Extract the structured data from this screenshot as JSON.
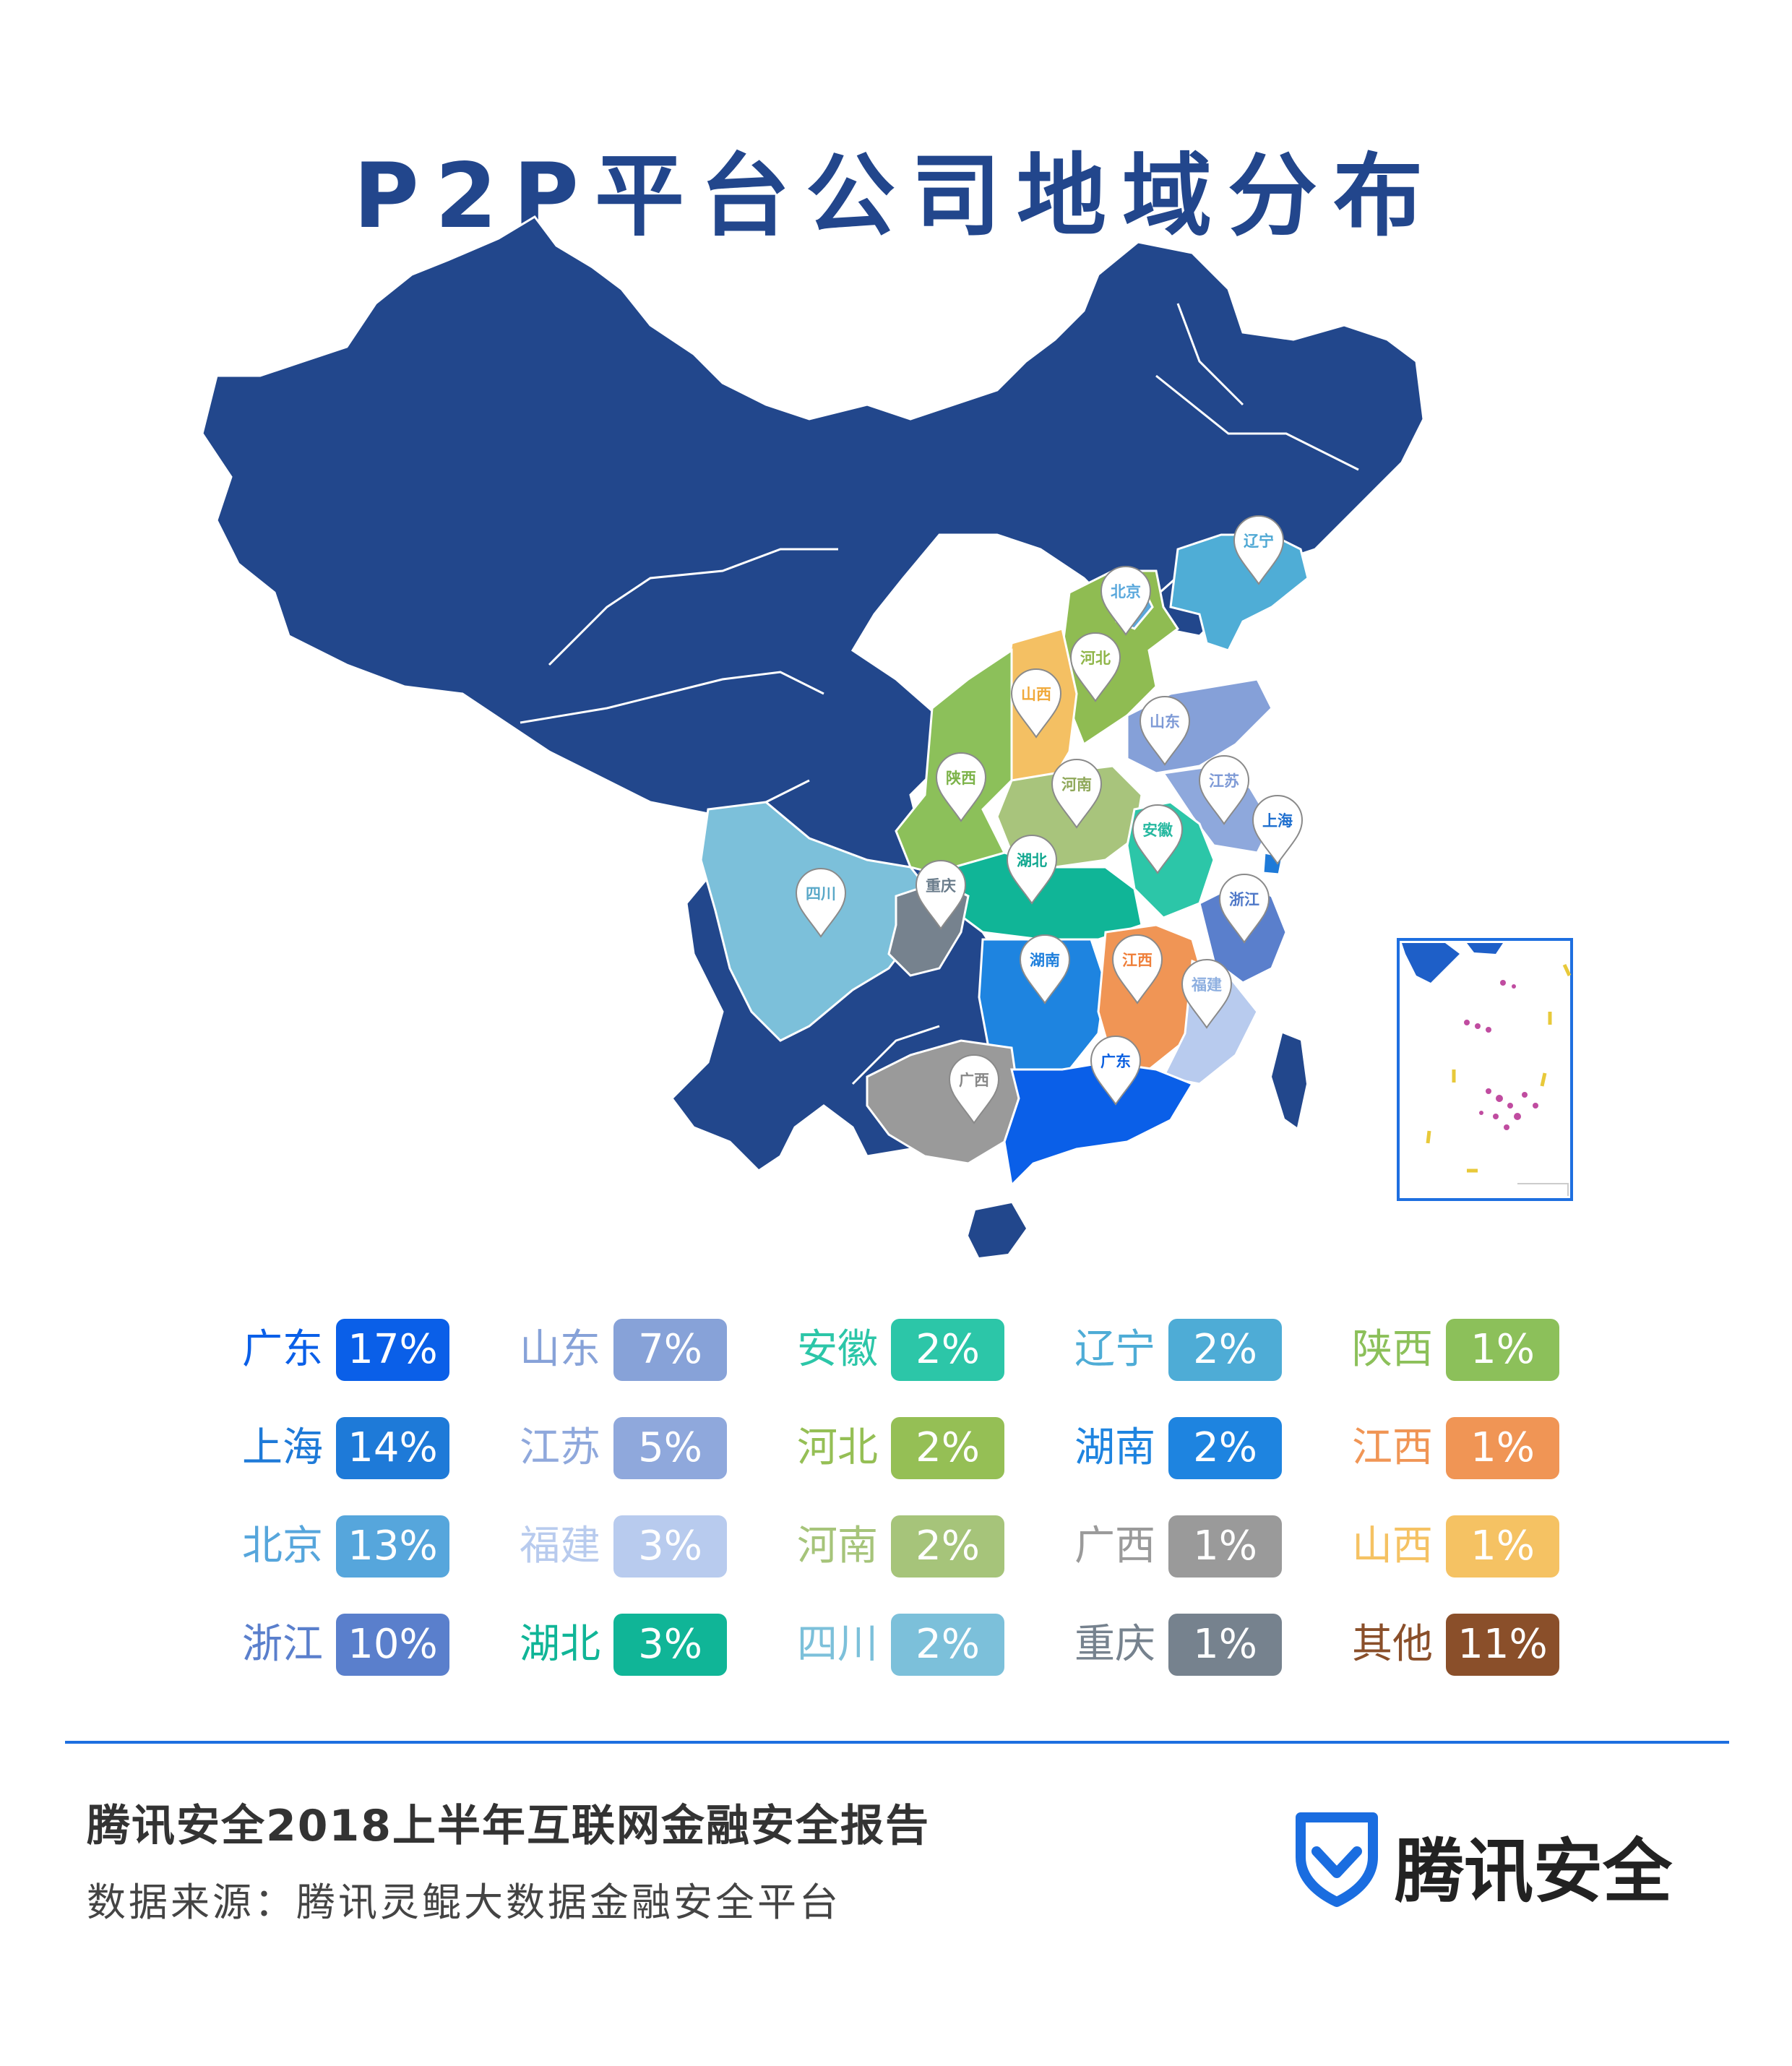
{
  "title": "P2P平台公司地域分布",
  "map_pins": [
    {
      "name": "辽宁",
      "color": "#4fa8d4"
    },
    {
      "name": "北京",
      "color": "#5aa8dc"
    },
    {
      "name": "河北",
      "color": "#8fb548"
    },
    {
      "name": "山西",
      "color": "#f0a93a"
    },
    {
      "name": "山东",
      "color": "#7e9ad6"
    },
    {
      "name": "陕西",
      "color": "#7db34a"
    },
    {
      "name": "河南",
      "color": "#8fa85a"
    },
    {
      "name": "江苏",
      "color": "#7e9ad6"
    },
    {
      "name": "上海",
      "color": "#1e6fcf"
    },
    {
      "name": "安徽",
      "color": "#26b8a0"
    },
    {
      "name": "湖北",
      "color": "#12a890"
    },
    {
      "name": "重庆",
      "color": "#6b7d8c"
    },
    {
      "name": "四川",
      "color": "#5aa8c8"
    },
    {
      "name": "浙江",
      "color": "#4f78c8"
    },
    {
      "name": "湖南",
      "color": "#1e7fdc"
    },
    {
      "name": "江西",
      "color": "#ef7f3a"
    },
    {
      "name": "福建",
      "color": "#8fb0e0"
    },
    {
      "name": "广东",
      "color": "#0a5fe0"
    },
    {
      "name": "广西",
      "color": "#888888"
    }
  ],
  "legend": [
    {
      "name": "广东",
      "pct": "17%",
      "color": "#0a5fe8"
    },
    {
      "name": "上海",
      "pct": "14%",
      "color": "#1e7ad8"
    },
    {
      "name": "北京",
      "pct": "13%",
      "color": "#56a6dc"
    },
    {
      "name": "浙江",
      "pct": "10%",
      "color": "#5a7fcc"
    },
    {
      "name": "山东",
      "pct": "7%",
      "color": "#87a2d8"
    },
    {
      "name": "江苏",
      "pct": "5%",
      "color": "#8fa8dc"
    },
    {
      "name": "福建",
      "pct": "3%",
      "color": "#b8cbee"
    },
    {
      "name": "湖北",
      "pct": "3%",
      "color": "#10b597"
    },
    {
      "name": "安徽",
      "pct": "2%",
      "color": "#2cc6a8"
    },
    {
      "name": "河北",
      "pct": "2%",
      "color": "#95bf55"
    },
    {
      "name": "河南",
      "pct": "2%",
      "color": "#a6c47a"
    },
    {
      "name": "四川",
      "pct": "2%",
      "color": "#7cc0da"
    },
    {
      "name": "辽宁",
      "pct": "2%",
      "color": "#4eacd6"
    },
    {
      "name": "湖南",
      "pct": "2%",
      "color": "#1e84e0"
    },
    {
      "name": "广西",
      "pct": "1%",
      "color": "#9a9a9a"
    },
    {
      "name": "重庆",
      "pct": "1%",
      "color": "#76828e"
    },
    {
      "name": "陕西",
      "pct": "1%",
      "color": "#8cc05a"
    },
    {
      "name": "江西",
      "pct": "1%",
      "color": "#f09555"
    },
    {
      "name": "山西",
      "pct": "1%",
      "color": "#f5c263"
    },
    {
      "name": "其他",
      "pct": "11%",
      "color": "#8a4f2a"
    }
  ],
  "footer": {
    "report_title": "腾讯安全2018上半年互联网金融安全报告",
    "source": "数据来源：腾讯灵鲲大数据金融安全平台"
  },
  "brand": {
    "name": "腾讯安全",
    "color": "#1a6de0"
  }
}
